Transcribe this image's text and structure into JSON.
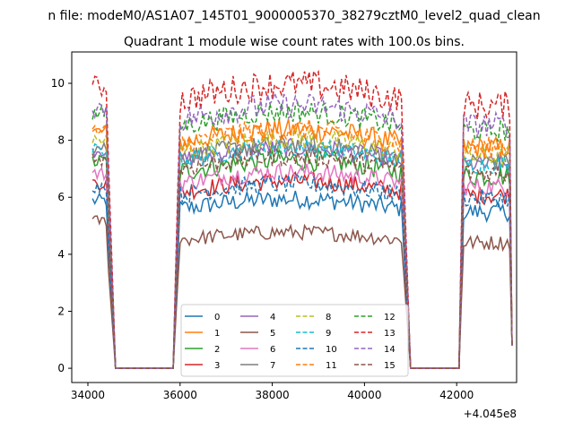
{
  "chart_data": {
    "type": "line",
    "suptitle": "n file: modeM0/AS1A07_145T01_9000005370_38279cztM0_level2_quad_clean",
    "title": "Quadrant 1 module wise count rates with 100.0s bins.",
    "xlabel": "",
    "ylabel": "",
    "offset_text": "+4.045e8",
    "x_offset": 404500000,
    "xlim": [
      33650,
      43300
    ],
    "ylim": [
      -0.5,
      11.1
    ],
    "x_ticks": [
      34000,
      36000,
      38000,
      40000,
      42000
    ],
    "x_tick_labels": [
      "34000",
      "36000",
      "38000",
      "40000",
      "42000"
    ],
    "y_ticks": [
      0,
      2,
      4,
      6,
      8,
      10
    ],
    "y_tick_labels": [
      "0",
      "2",
      "4",
      "6",
      "8",
      "10"
    ],
    "grid": false,
    "legend": {
      "placement": "lower-center",
      "columns": 4
    },
    "segments": [
      {
        "x_start": 34100,
        "x_end": 35800
      },
      {
        "x_start": 35800,
        "x_end": 41900
      },
      {
        "x_start": 41900,
        "x_end": 43200
      }
    ],
    "series": [
      {
        "name": "0",
        "color": "#1f77b4",
        "dash": "solid",
        "level": 5.6,
        "amp": 0.25
      },
      {
        "name": "1",
        "color": "#ff7f0e",
        "dash": "solid",
        "level": 7.9,
        "amp": 0.3
      },
      {
        "name": "2",
        "color": "#2ca02c",
        "dash": "solid",
        "level": 6.9,
        "amp": 0.3
      },
      {
        "name": "3",
        "color": "#d62728",
        "dash": "solid",
        "level": 6.2,
        "amp": 0.25
      },
      {
        "name": "4",
        "color": "#9467bd",
        "dash": "solid",
        "level": 7.3,
        "amp": 0.25
      },
      {
        "name": "5",
        "color": "#8c564b",
        "dash": "solid",
        "level": 4.5,
        "amp": 0.2
      },
      {
        "name": "6",
        "color": "#e377c2",
        "dash": "solid",
        "level": 6.5,
        "amp": 0.25
      },
      {
        "name": "7",
        "color": "#7f7f7f",
        "dash": "solid",
        "level": 7.4,
        "amp": 0.25
      },
      {
        "name": "8",
        "color": "#bcbd22",
        "dash": "dashed",
        "level": 7.6,
        "amp": 0.3
      },
      {
        "name": "9",
        "color": "#17becf",
        "dash": "dashed",
        "level": 7.3,
        "amp": 0.25
      },
      {
        "name": "10",
        "color": "#1f77b4",
        "dash": "dashed",
        "level": 6.1,
        "amp": 0.25
      },
      {
        "name": "11",
        "color": "#ff7f0e",
        "dash": "dashed",
        "level": 7.9,
        "amp": 0.3
      },
      {
        "name": "12",
        "color": "#2ca02c",
        "dash": "dashed",
        "level": 8.5,
        "amp": 0.3
      },
      {
        "name": "13",
        "color": "#d62728",
        "dash": "dashed",
        "level": 9.4,
        "amp": 0.4
      },
      {
        "name": "14",
        "color": "#9467bd",
        "dash": "dashed",
        "level": 8.7,
        "amp": 0.35
      },
      {
        "name": "15",
        "color": "#8c564b",
        "dash": "dashed",
        "level": 7.0,
        "amp": 0.25
      }
    ]
  }
}
